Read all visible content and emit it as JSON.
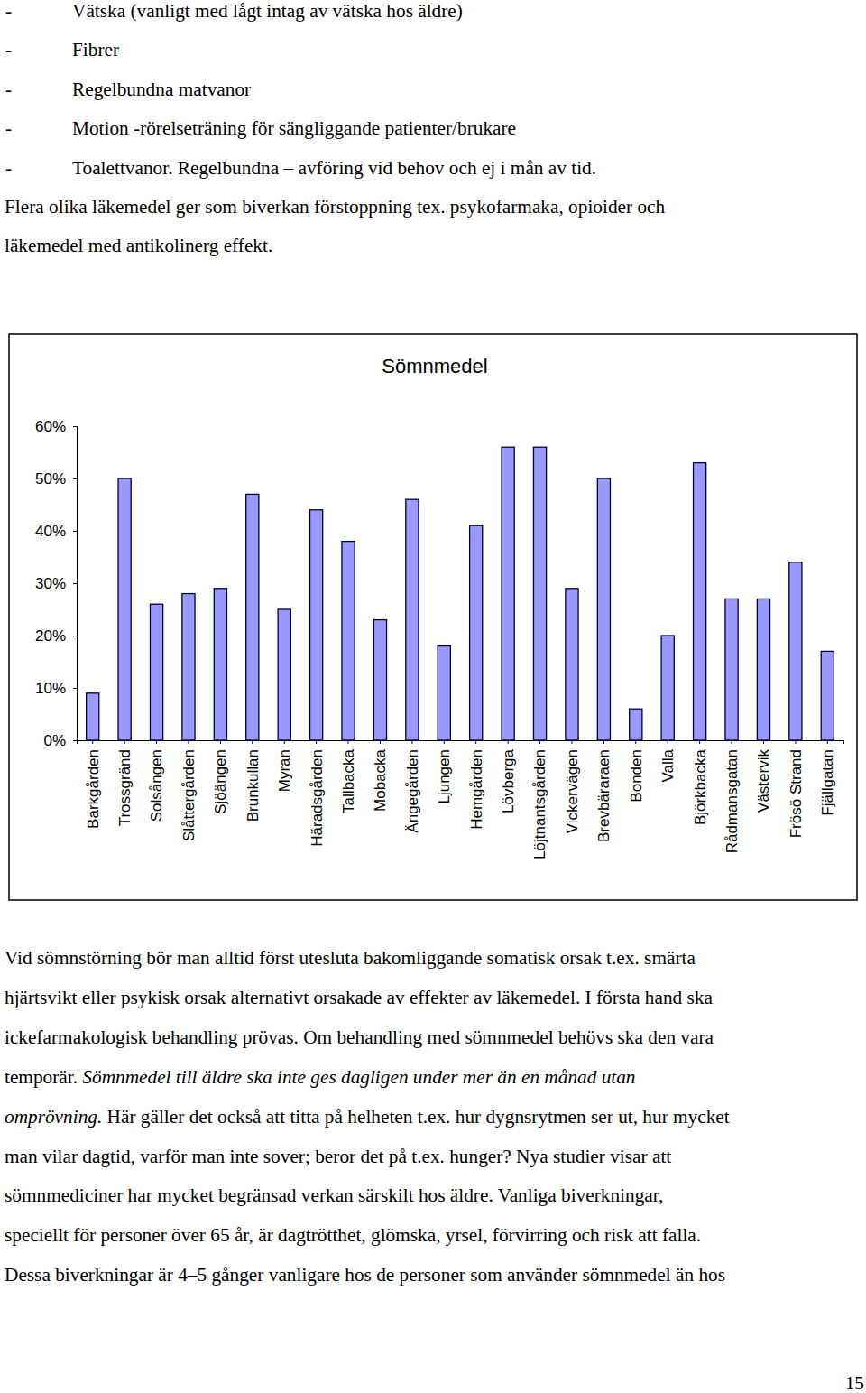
{
  "list": {
    "bullet": "-",
    "items": [
      "Vätska (vanligt med lågt intag av vätska hos äldre)",
      "Fibrer",
      "Regelbundna matvanor",
      "Motion -rörelseträning för sängliggande patienter/brukare",
      "Toalettvanor. Regelbundna – avföring vid behov och ej i mån av tid."
    ]
  },
  "paragraph_top": [
    "Flera olika läkemedel ger som biverkan förstoppning tex. psykofarmaka, opioider och",
    "läkemedel med antikolinerg effekt."
  ],
  "chart_data": {
    "type": "bar",
    "title": "Sömnmedel",
    "categories": [
      "Barkgården",
      "Trossgränd",
      "Solsången",
      "Slåttergården",
      "Sjöängen",
      "Brunkullan",
      "Myran",
      "Häradsgården",
      "Tallbacka",
      "Mobacka",
      "Ängegården",
      "Ljungen",
      "Hemgården",
      "Lövberga",
      "Löjtnantsgården",
      "Vickervägen",
      "Brevbäraraen",
      "Bonden",
      "Valla",
      "Björkbacka",
      "Rådmansgatan",
      "Västervik",
      "Frösö Strand",
      "Fjällgatan"
    ],
    "values": [
      9,
      50,
      26,
      28,
      29,
      47,
      25,
      44,
      38,
      23,
      46,
      18,
      41,
      56,
      56,
      29,
      50,
      6,
      20,
      53,
      27,
      27,
      34,
      17
    ],
    "color": "#9999ff",
    "ylim": [
      0,
      60
    ],
    "yticks": [
      {
        "value": 0,
        "label": "0%"
      },
      {
        "value": 10,
        "label": "10%"
      },
      {
        "value": 20,
        "label": "20%"
      },
      {
        "value": 30,
        "label": "30%"
      },
      {
        "value": 40,
        "label": "40%"
      },
      {
        "value": 50,
        "label": "50%"
      },
      {
        "value": 60,
        "label": "60%"
      }
    ],
    "grid": false
  },
  "paragraph_bottom": [
    [
      {
        "text": "Vid sömnstörning bör man alltid först utesluta bakomliggande somatisk orsak t.ex. smärta",
        "italic": false
      }
    ],
    [
      {
        "text": "hjärtsvikt eller psykisk orsak alternativt orsakade av effekter av läkemedel. I första hand ska",
        "italic": false
      }
    ],
    [
      {
        "text": "ickefarmakologisk behandling prövas. Om behandling med sömnmedel behövs ska den vara",
        "italic": false
      }
    ],
    [
      {
        "text": "temporär. ",
        "italic": false
      },
      {
        "text": "Sömnmedel till äldre ska inte ges dagligen under mer än en månad utan",
        "italic": true
      }
    ],
    [
      {
        "text": "omprövning.",
        "italic": true
      },
      {
        "text": " Här gäller det också att titta på helheten t.ex. hur dygnsrytmen ser ut, hur mycket",
        "italic": false
      }
    ],
    [
      {
        "text": "man vilar dagtid, varför man inte sover; beror det på t.ex. hunger? Nya studier visar att",
        "italic": false
      }
    ],
    [
      {
        "text": "sömnmediciner har mycket begränsad verkan särskilt hos äldre. Vanliga biverkningar,",
        "italic": false
      }
    ],
    [
      {
        "text": "speciellt för personer över 65 år, är dagtrötthet, glömska, yrsel, förvirring och risk att falla.",
        "italic": false
      }
    ],
    [
      {
        "text": "Dessa biverkningar är 4–5 gånger vanligare hos de personer som använder sömnmedel än hos",
        "italic": false
      }
    ]
  ],
  "page_number": 15
}
